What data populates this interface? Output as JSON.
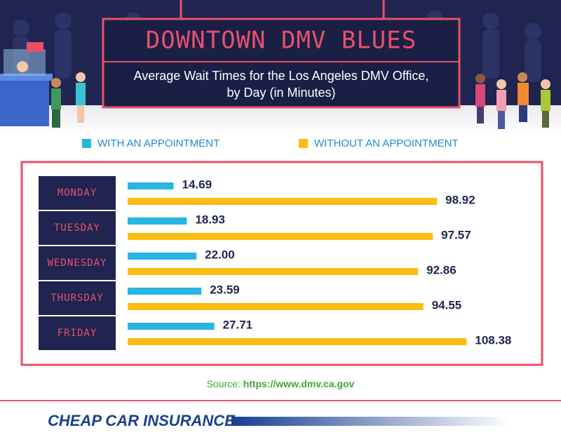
{
  "title": "DOWNTOWN DMV BLUES",
  "subtitle_lines": [
    "Average Wait Times for the Los Angeles DMV Office,",
    "by Day (in Minutes)"
  ],
  "chart_data": {
    "type": "bar",
    "orientation": "horizontal",
    "categories": [
      "MONDAY",
      "TUESDAY",
      "WEDNESDAY",
      "THURSDAY",
      "FRIDAY"
    ],
    "series": [
      {
        "name": "WITH AN APPOINTMENT",
        "color": "#29b5e0",
        "values": [
          14.69,
          18.93,
          22.0,
          23.59,
          27.71
        ],
        "value_labels": [
          "14.69",
          "18.93",
          "22.00",
          "23.59",
          "27.71"
        ]
      },
      {
        "name": "WITHOUT AN APPOINTMENT",
        "color": "#fbbd12",
        "values": [
          98.92,
          97.57,
          92.86,
          94.55,
          108.38
        ],
        "value_labels": [
          "98.92",
          "97.57",
          "92.86",
          "94.55",
          "108.38"
        ]
      }
    ]
  },
  "source_label": "Source:",
  "source_url": "https://www.dmv.ca.gov",
  "logo": "CHEAP CAR INSURANCE"
}
